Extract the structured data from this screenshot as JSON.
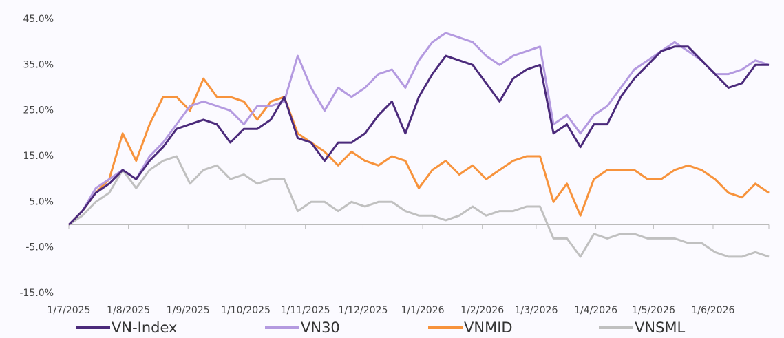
{
  "chart_data": {
    "type": "line",
    "x": [
      "2025-07-01",
      "2025-07-08",
      "2025-07-15",
      "2025-07-22",
      "2025-07-29",
      "2025-08-05",
      "2025-08-12",
      "2025-08-19",
      "2025-08-26",
      "2025-09-02",
      "2025-09-09",
      "2025-09-16",
      "2025-09-23",
      "2025-09-30",
      "2025-10-07",
      "2025-10-14",
      "2025-10-21",
      "2025-10-28",
      "2025-11-04",
      "2025-11-11",
      "2025-11-18",
      "2025-11-25",
      "2025-12-02",
      "2025-12-09",
      "2025-12-16",
      "2025-12-23",
      "2025-12-30",
      "2026-01-06",
      "2026-01-13",
      "2026-01-20",
      "2026-01-27",
      "2026-02-03",
      "2026-02-10",
      "2026-02-17",
      "2026-02-24",
      "2026-03-03",
      "2026-03-10",
      "2026-03-17",
      "2026-03-24",
      "2026-03-31",
      "2026-04-07",
      "2026-04-14",
      "2026-04-21",
      "2026-04-28",
      "2026-05-05",
      "2026-05-12",
      "2026-05-19",
      "2026-05-26",
      "2026-06-02",
      "2026-06-09",
      "2026-06-16",
      "2026-06-23",
      "2026-06-30"
    ],
    "series": [
      {
        "name": "VN-Index",
        "color": "#4b2a7b",
        "values": [
          0,
          3,
          7,
          9,
          12,
          10,
          14,
          17,
          21,
          22,
          23,
          22,
          18,
          21,
          21,
          23,
          28,
          19,
          18,
          14,
          18,
          18,
          20,
          24,
          27,
          20,
          28,
          33,
          37,
          36,
          35,
          31,
          27,
          32,
          34,
          35,
          20,
          22,
          17,
          22,
          22,
          28,
          32,
          35,
          38,
          39,
          39,
          36,
          33,
          30,
          31,
          35,
          35
        ]
      },
      {
        "name": "VN30",
        "color": "#b49ae0",
        "values": [
          0,
          3,
          8,
          10,
          12,
          10,
          15,
          18,
          22,
          26,
          27,
          26,
          25,
          22,
          26,
          26,
          27,
          37,
          30,
          25,
          30,
          28,
          30,
          33,
          34,
          30,
          36,
          40,
          42,
          41,
          40,
          37,
          35,
          37,
          38,
          39,
          22,
          24,
          20,
          24,
          26,
          30,
          34,
          36,
          38,
          40,
          38,
          36,
          33,
          33,
          34,
          36,
          35
        ]
      },
      {
        "name": "VNMID",
        "color": "#f7933c",
        "values": [
          0,
          3,
          7,
          10,
          20,
          14,
          22,
          28,
          28,
          25,
          32,
          28,
          28,
          27,
          23,
          27,
          28,
          20,
          18,
          16,
          13,
          16,
          14,
          13,
          15,
          14,
          8,
          12,
          14,
          11,
          13,
          10,
          12,
          14,
          15,
          15,
          5,
          9,
          2,
          10,
          12,
          12,
          12,
          10,
          10,
          12,
          13,
          12,
          10,
          7,
          6,
          9,
          7
        ]
      },
      {
        "name": "VNSML",
        "color": "#c0c0c0",
        "values": [
          0,
          2,
          5,
          7,
          12,
          8,
          12,
          14,
          15,
          9,
          12,
          13,
          10,
          11,
          9,
          10,
          10,
          3,
          5,
          5,
          3,
          5,
          4,
          5,
          5,
          3,
          2,
          2,
          1,
          2,
          4,
          2,
          3,
          3,
          4,
          4,
          -3,
          -3,
          -7,
          -2,
          -3,
          -2,
          -2,
          -3,
          -3,
          -3,
          -4,
          -4,
          -6,
          -7,
          -7,
          -6,
          -7
        ]
      }
    ],
    "xlim": [
      "2025-07-01",
      "2026-06-30"
    ],
    "xticks": [
      {
        "value": "2025-07-01",
        "label": "1/7/2025"
      },
      {
        "value": "2025-08-01",
        "label": "1/8/2025"
      },
      {
        "value": "2025-09-01",
        "label": "1/9/2025"
      },
      {
        "value": "2025-10-01",
        "label": "1/10/2025"
      },
      {
        "value": "2025-11-01",
        "label": "1/11/2025"
      },
      {
        "value": "2025-12-01",
        "label": "1/12/2025"
      },
      {
        "value": "2026-01-01",
        "label": "1/1/2026"
      },
      {
        "value": "2026-02-01",
        "label": "1/2/2026"
      },
      {
        "value": "2026-03-01",
        "label": "1/3/2026"
      },
      {
        "value": "2026-04-01",
        "label": "1/4/2026"
      },
      {
        "value": "2026-05-01",
        "label": "1/5/2026"
      },
      {
        "value": "2026-06-01",
        "label": "1/6/2026"
      }
    ],
    "ylim": [
      -15,
      45
    ],
    "yticks": [
      {
        "value": -15,
        "label": "-15.0%"
      },
      {
        "value": -5,
        "label": "-5.0%"
      },
      {
        "value": 5,
        "label": "5.0%"
      },
      {
        "value": 15,
        "label": "15.0%"
      },
      {
        "value": 25,
        "label": "25.0%"
      },
      {
        "value": 35,
        "label": "35.0%"
      },
      {
        "value": 45,
        "label": "45.0%"
      }
    ],
    "legend": "bottom",
    "grid": false
  }
}
